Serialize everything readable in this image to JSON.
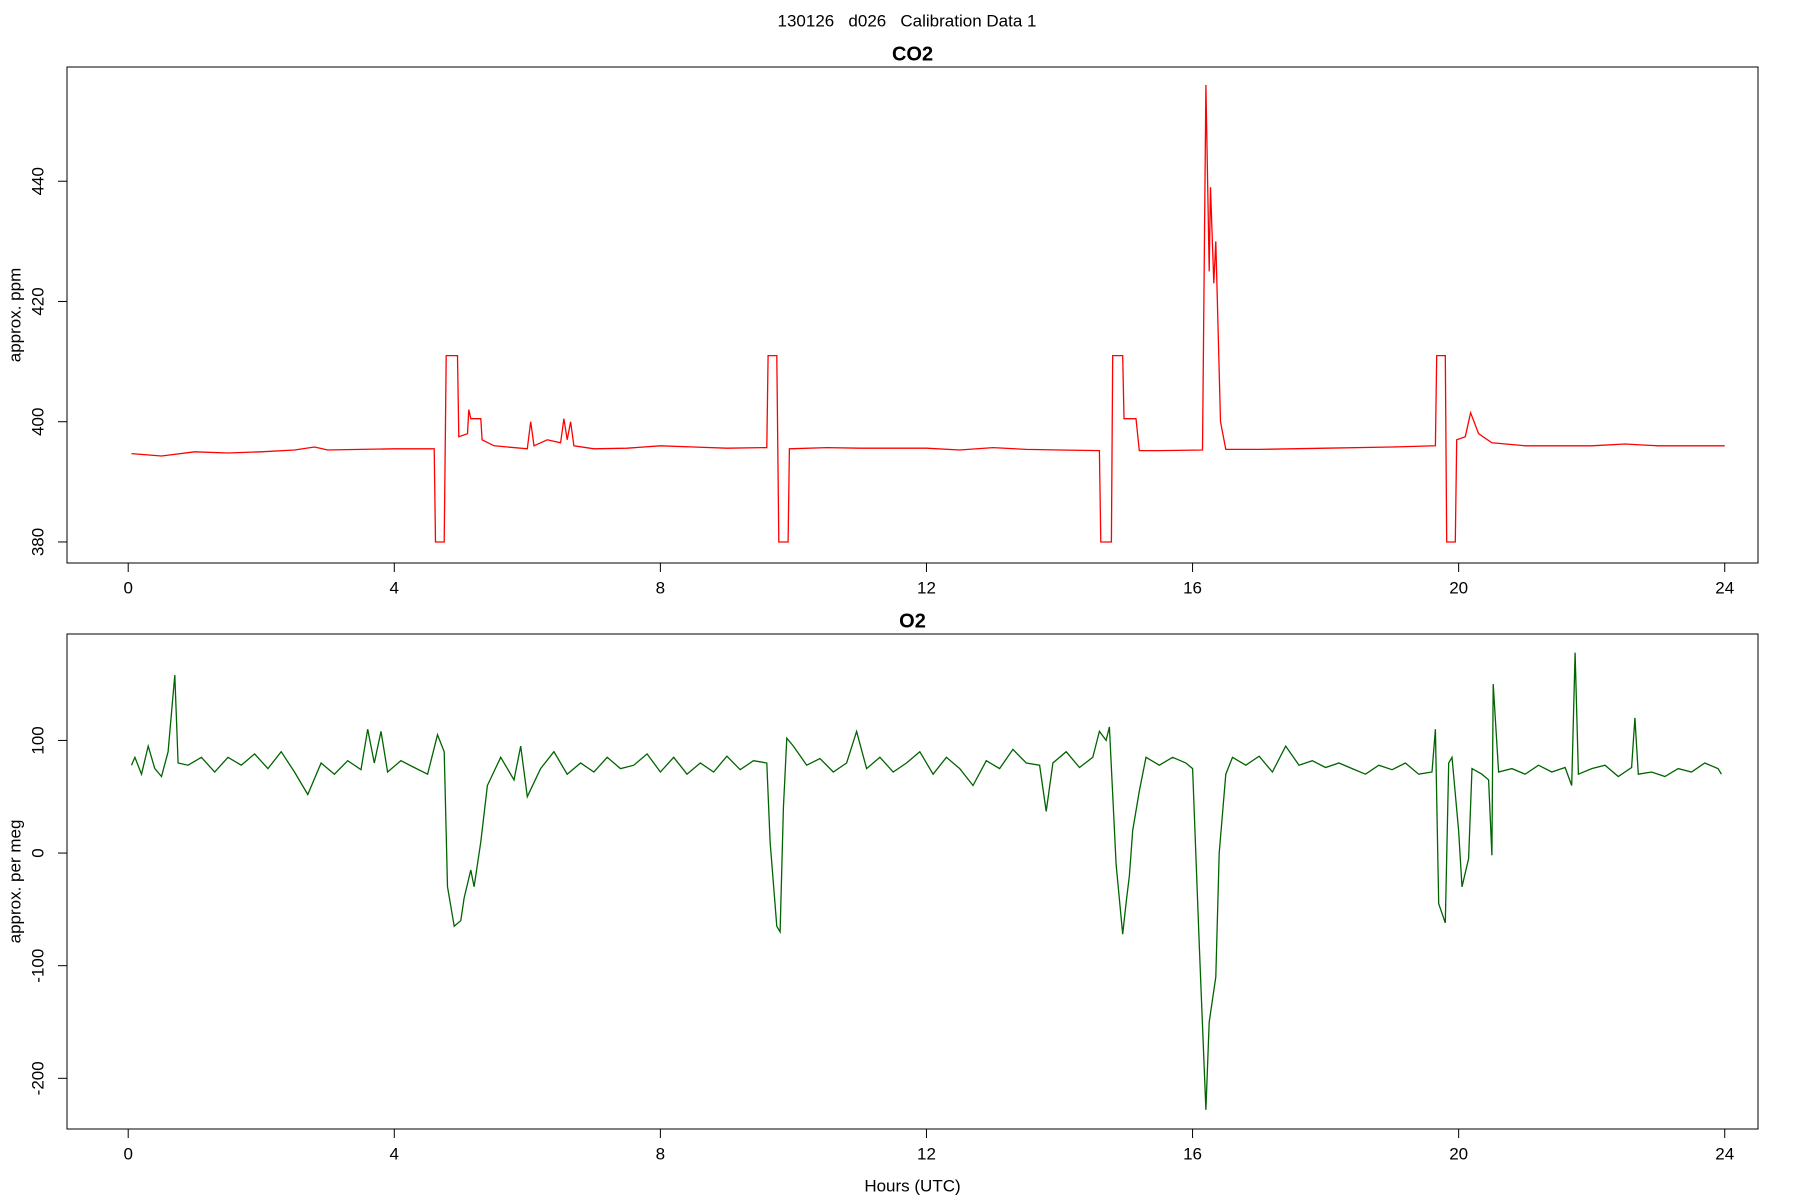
{
  "title": "130126   d026   Calibration Data 1",
  "chart_data": [
    {
      "type": "line",
      "title": "CO2",
      "ylabel": "approx. ppm",
      "color": "#ff0000",
      "xlim": [
        -0.92,
        24.5
      ],
      "xticks": [
        0,
        4,
        8,
        12,
        16,
        20,
        24
      ],
      "ylim": [
        376.5,
        459
      ],
      "yticks": [
        380,
        400,
        420,
        440
      ],
      "x": [
        0.05,
        0.5,
        1,
        1.5,
        2,
        2.5,
        2.8,
        3,
        3.5,
        4,
        4.6,
        4.62,
        4.75,
        4.78,
        4.95,
        4.97,
        5.1,
        5.12,
        5.15,
        5.3,
        5.32,
        5.5,
        6,
        6.05,
        6.1,
        6.3,
        6.5,
        6.55,
        6.6,
        6.65,
        6.7,
        7,
        7.5,
        8,
        8.5,
        9,
        9.6,
        9.62,
        9.75,
        9.78,
        9.92,
        9.94,
        10.5,
        11,
        12,
        12.5,
        13,
        13.5,
        14,
        14.6,
        14.62,
        14.78,
        14.8,
        14.95,
        14.97,
        15.15,
        15.2,
        15.5,
        16.15,
        16.2,
        16.25,
        16.27,
        16.32,
        16.35,
        16.42,
        16.5,
        17,
        18,
        19,
        19.65,
        19.67,
        19.8,
        19.82,
        19.95,
        19.97,
        20.1,
        20.18,
        20.3,
        20.5,
        21,
        22,
        22.5,
        23,
        24
      ],
      "values": [
        394.7,
        394.3,
        395,
        394.8,
        395,
        395.3,
        395.8,
        395.3,
        395.4,
        395.5,
        395.5,
        380,
        380,
        411,
        411,
        397.5,
        398,
        402,
        400.5,
        400.5,
        397,
        396,
        395.5,
        400,
        396,
        397,
        396.5,
        400.5,
        397,
        400,
        396,
        395.5,
        395.6,
        396,
        395.8,
        395.6,
        395.7,
        411,
        411,
        380,
        380,
        395.5,
        395.7,
        395.6,
        395.6,
        395.3,
        395.7,
        395.4,
        395.3,
        395.2,
        380,
        380,
        411,
        411,
        400.5,
        400.5,
        395.2,
        395.2,
        395.3,
        456,
        425,
        439,
        423,
        430,
        400,
        395.4,
        395.4,
        395.6,
        395.8,
        396,
        411,
        411,
        380,
        380,
        397,
        397.5,
        401.5,
        398,
        396.5,
        396,
        396,
        396.3,
        396,
        396
      ]
    },
    {
      "type": "line",
      "title": "O2",
      "ylabel": "approx. per meg",
      "xlabel": "Hours (UTC)",
      "color": "#006400",
      "xlim": [
        -0.92,
        24.5
      ],
      "xticks": [
        0,
        4,
        8,
        12,
        16,
        20,
        24
      ],
      "ylim": [
        -245,
        194.5
      ],
      "yticks": [
        -200,
        -100,
        0,
        100
      ],
      "x": [
        0.05,
        0.1,
        0.2,
        0.3,
        0.4,
        0.5,
        0.6,
        0.7,
        0.75,
        0.9,
        1.1,
        1.3,
        1.5,
        1.7,
        1.9,
        2.1,
        2.3,
        2.5,
        2.7,
        2.9,
        3.1,
        3.3,
        3.5,
        3.6,
        3.7,
        3.8,
        3.9,
        4.1,
        4.3,
        4.5,
        4.65,
        4.75,
        4.8,
        4.9,
        5.0,
        5.05,
        5.15,
        5.2,
        5.3,
        5.4,
        5.6,
        5.8,
        5.9,
        6.0,
        6.2,
        6.4,
        6.6,
        6.8,
        7.0,
        7.2,
        7.4,
        7.6,
        7.8,
        8.0,
        8.2,
        8.4,
        8.6,
        8.8,
        9.0,
        9.2,
        9.4,
        9.6,
        9.65,
        9.75,
        9.8,
        9.85,
        9.9,
        10.0,
        10.2,
        10.4,
        10.6,
        10.8,
        10.95,
        11.1,
        11.3,
        11.5,
        11.7,
        11.9,
        12.1,
        12.3,
        12.5,
        12.7,
        12.9,
        13.1,
        13.3,
        13.5,
        13.7,
        13.8,
        13.9,
        14.1,
        14.3,
        14.5,
        14.6,
        14.7,
        14.75,
        14.85,
        14.95,
        15.0,
        15.05,
        15.1,
        15.2,
        15.3,
        15.5,
        15.7,
        15.9,
        16.0,
        16.1,
        16.2,
        16.25,
        16.35,
        16.4,
        16.5,
        16.6,
        16.8,
        17.0,
        17.2,
        17.4,
        17.6,
        17.8,
        18.0,
        18.2,
        18.4,
        18.6,
        18.8,
        19.0,
        19.2,
        19.4,
        19.6,
        19.65,
        19.7,
        19.8,
        19.85,
        19.9,
        20.0,
        20.05,
        20.15,
        20.2,
        20.35,
        20.45,
        20.5,
        20.52,
        20.6,
        20.8,
        21.0,
        21.2,
        21.4,
        21.6,
        21.7,
        21.75,
        21.8,
        22.0,
        22.2,
        22.4,
        22.6,
        22.65,
        22.7,
        22.9,
        23.1,
        23.3,
        23.5,
        23.7,
        23.9,
        23.95
      ],
      "values": [
        78,
        85,
        70,
        95,
        75,
        68,
        90,
        158,
        80,
        78,
        85,
        72,
        85,
        78,
        88,
        75,
        90,
        72,
        52,
        80,
        70,
        82,
        74,
        110,
        80,
        108,
        72,
        82,
        76,
        70,
        105,
        90,
        -30,
        -65,
        -60,
        -40,
        -15,
        -30,
        10,
        60,
        85,
        65,
        95,
        50,
        75,
        90,
        70,
        80,
        72,
        85,
        75,
        78,
        88,
        72,
        85,
        70,
        80,
        72,
        86,
        74,
        82,
        80,
        10,
        -65,
        -70,
        40,
        102,
        95,
        78,
        84,
        72,
        80,
        108,
        75,
        85,
        72,
        80,
        90,
        70,
        85,
        75,
        60,
        82,
        75,
        92,
        80,
        78,
        37,
        80,
        90,
        76,
        85,
        108,
        100,
        112,
        -10,
        -72,
        -45,
        -20,
        20,
        55,
        85,
        78,
        85,
        80,
        75,
        -80,
        -228,
        -150,
        -110,
        0,
        70,
        85,
        78,
        86,
        72,
        95,
        78,
        82,
        76,
        80,
        75,
        70,
        78,
        74,
        80,
        70,
        72,
        110,
        -45,
        -62,
        80,
        85,
        20,
        -30,
        -5,
        75,
        70,
        65,
        -2,
        150,
        72,
        75,
        70,
        78,
        72,
        76,
        60,
        178,
        70,
        75,
        78,
        68,
        76,
        120,
        70,
        72,
        68,
        75,
        72,
        80,
        75,
        70
      ]
    }
  ]
}
